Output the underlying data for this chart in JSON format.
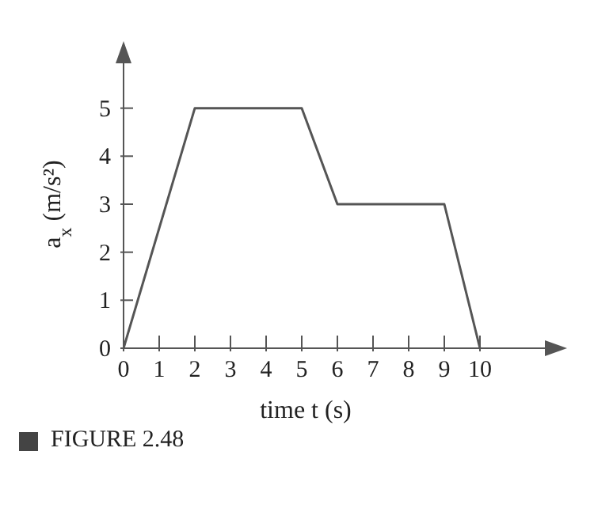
{
  "chart_data": {
    "type": "line",
    "xlabel": "time t (s)",
    "ylabel": "a$_{x}$ (m/s²)",
    "x": [
      0,
      2,
      5,
      6,
      9,
      10
    ],
    "series": [
      {
        "color": "#555555",
        "values": [
          0,
          5,
          5,
          3,
          3,
          0
        ]
      }
    ],
    "xlim": [
      0,
      12
    ],
    "xticks": [
      0,
      1,
      2,
      3,
      4,
      5,
      6,
      7,
      8,
      9,
      10
    ],
    "ylim": [
      0,
      6
    ],
    "yticks": [
      0,
      1,
      2,
      3,
      4,
      5
    ],
    "grid": false,
    "legend": false,
    "marker": "none",
    "line_style": "solid",
    "annotations": [
      "FIGURE 2.48"
    ]
  }
}
